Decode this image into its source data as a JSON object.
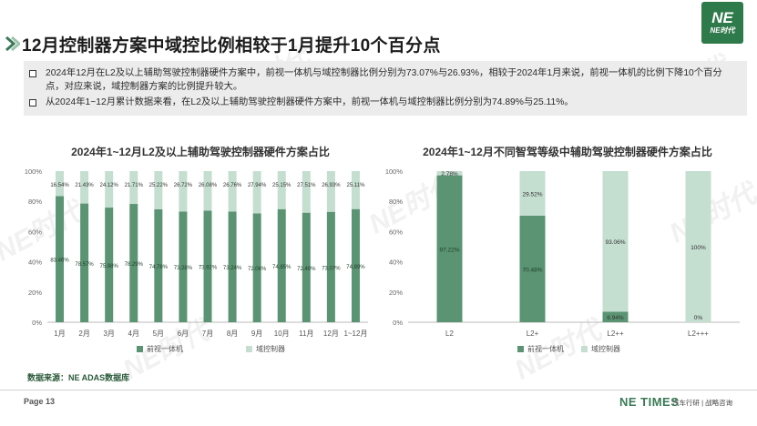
{
  "header": {
    "title": "12月控制器方案中域控比例相较于1月提升10个百分点",
    "logo_mark": "NE",
    "logo_text": "NE时代"
  },
  "summary": {
    "bullets": [
      "2024年12月在L2及以上辅助驾驶控制器硬件方案中，前视一体机与域控制器比例分别为73.07%与26.93%，相较于2024年1月来说，前视一体机的比例下降10个百分点，对应来说，域控制器方案的比例提升较大。",
      "从2024年1~12月累计数据来看，在L2及以上辅助驾驶控制器硬件方案中，前视一体机与域控制器比例分别为74.89%与25.11%。"
    ]
  },
  "chart_data": [
    {
      "type": "bar",
      "stacked": true,
      "percent": true,
      "title": "2024年1~12月L2及以上辅助驾驶控制器硬件方案占比",
      "categories": [
        "1月",
        "2月",
        "3月",
        "4月",
        "5月",
        "6月",
        "7月",
        "8月",
        "9月",
        "10月",
        "11月",
        "12月",
        "1~12月"
      ],
      "series": [
        {
          "name": "前视一体机",
          "values": [
            83.46,
            78.57,
            75.88,
            78.29,
            74.78,
            73.28,
            73.92,
            73.24,
            72.06,
            74.85,
            72.49,
            73.07,
            74.89
          ],
          "labels": [
            "83.46%",
            "78.57%",
            "75.88%",
            "78.29%",
            "74.78%",
            "73.28%",
            "73.92%",
            "73.24%",
            "72.06%",
            "74.85%",
            "72.49%",
            "73.07%",
            "74.89%"
          ],
          "color": "#5a9472"
        },
        {
          "name": "域控制器",
          "values": [
            16.54,
            21.43,
            24.12,
            21.71,
            25.22,
            26.72,
            26.08,
            26.76,
            27.94,
            25.15,
            27.51,
            26.93,
            25.11
          ],
          "labels": [
            "16.54%",
            "21.43%",
            "24.12%",
            "21.71%",
            "25.22%",
            "26.72%",
            "26.08%",
            "26.76%",
            "27.94%",
            "25.15%",
            "27.51%",
            "26.93%",
            "25.11%"
          ],
          "color": "#c4ded0"
        }
      ],
      "yticks": [
        "0%",
        "20%",
        "40%",
        "60%",
        "80%",
        "100%"
      ],
      "ylim": [
        0,
        100
      ],
      "grid": false,
      "legend_position": "bottom"
    },
    {
      "type": "bar",
      "stacked": true,
      "percent": true,
      "title": "2024年1~12月不同智驾等级中辅助驾驶控制器硬件方案占比",
      "categories": [
        "L2",
        "L2+",
        "L2++",
        "L2+++"
      ],
      "series": [
        {
          "name": "前视一体机",
          "values": [
            97.22,
            70.48,
            6.94,
            0
          ],
          "labels": [
            "97.22%",
            "70.48%",
            "6.94%",
            "0%"
          ],
          "color": "#5a9472"
        },
        {
          "name": "域控制器",
          "values": [
            2.78,
            29.52,
            93.06,
            100
          ],
          "labels": [
            "2.78%",
            "29.52%",
            "93.06%",
            "100%"
          ],
          "color": "#c4ded0"
        }
      ],
      "yticks": [
        "0%",
        "20%",
        "40%",
        "60%",
        "80%",
        "100%"
      ],
      "ylim": [
        0,
        100
      ],
      "grid": false,
      "legend_position": "bottom"
    }
  ],
  "footer": {
    "source": "数据来源：NE ADAS数据库",
    "page": "Page 13",
    "brand": "NE TIMES",
    "brand_sub": "汽车行研 | 战略咨询"
  },
  "watermark": "NE时代"
}
